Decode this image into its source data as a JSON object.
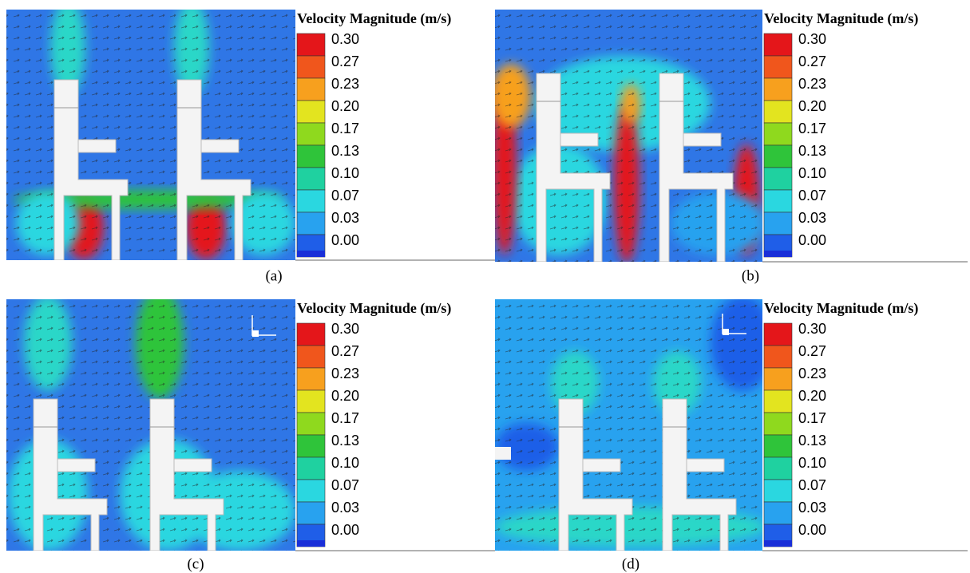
{
  "panels": [
    {
      "legend_title": "Velocity Magnitude (m/s)",
      "legend_labels": [
        "0.30",
        "0.27",
        "0.23",
        "0.20",
        "0.17",
        "0.13",
        "0.10",
        "0.07",
        "0.03",
        "0.00"
      ],
      "caption": "(a)"
    },
    {
      "legend_title": "Velocity Magnitude (m/s)",
      "legend_labels": [
        "0.30",
        "0.27",
        "0.23",
        "0.20",
        "0.17",
        "0.13",
        "0.10",
        "0.07",
        "0.03",
        "0.00"
      ],
      "caption": "(b)"
    },
    {
      "legend_title": "Velocity Magnitude (m/s)",
      "legend_labels": [
        "0.30",
        "0.27",
        "0.23",
        "0.20",
        "0.17",
        "0.13",
        "0.10",
        "0.07",
        "0.03",
        "0.00"
      ],
      "caption": "(c)"
    },
    {
      "legend_title": "Velocity Magnitude (m/s)",
      "legend_labels": [
        "0.30",
        "0.27",
        "0.23",
        "0.20",
        "0.17",
        "0.13",
        "0.10",
        "0.07",
        "0.03",
        "0.00"
      ],
      "caption": "(d)"
    }
  ]
}
